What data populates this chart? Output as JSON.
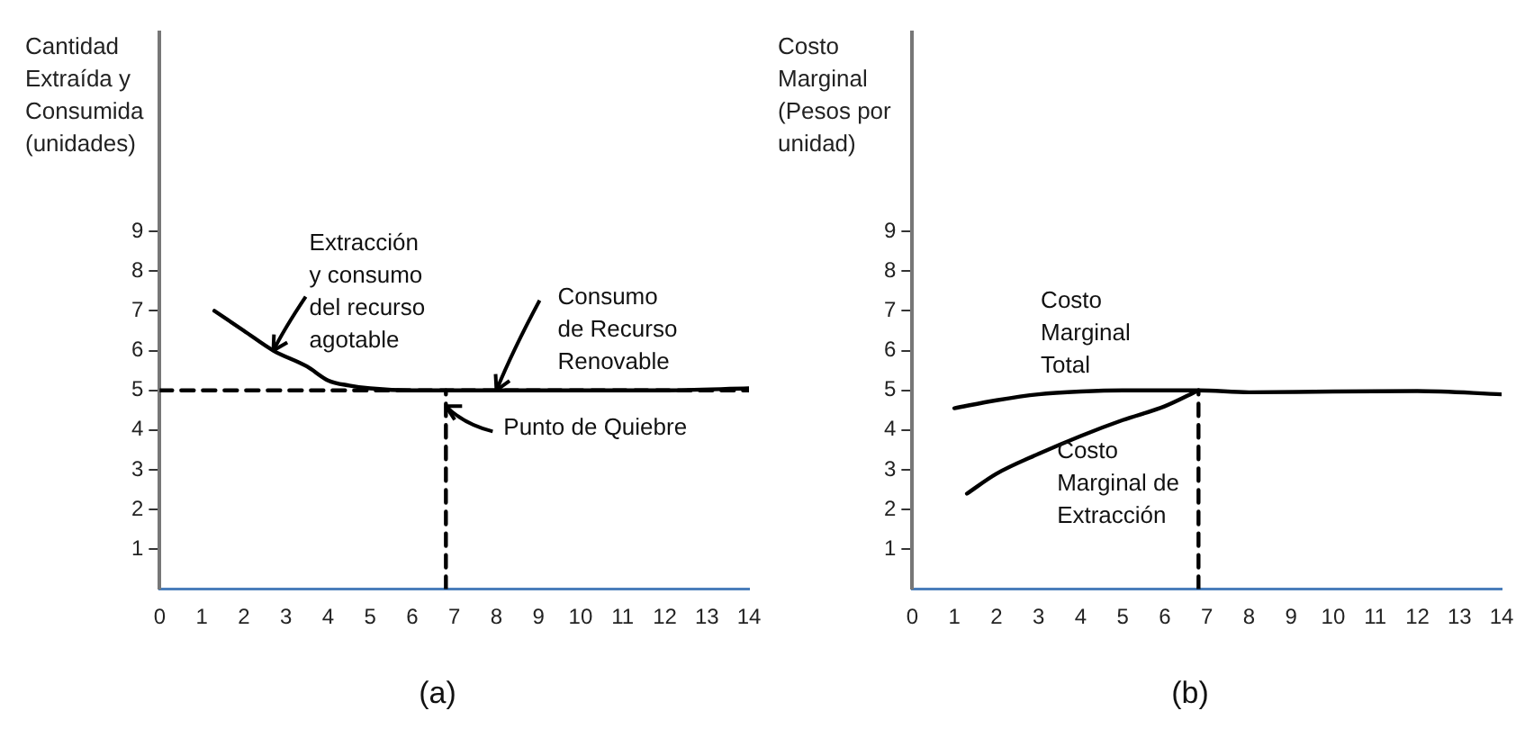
{
  "chart_data": [
    {
      "type": "line",
      "title": "(a)",
      "ylabel": "Cantidad Extraída y Consumida (unidades)",
      "xlim": [
        0,
        14
      ],
      "xticks": [
        0,
        1,
        2,
        3,
        4,
        5,
        6,
        7,
        8,
        9,
        10,
        11,
        12,
        13,
        14
      ],
      "ylim": [
        0,
        14
      ],
      "yticks": [
        1,
        2,
        3,
        4,
        5,
        6,
        7,
        8,
        9
      ],
      "grid": false,
      "legend": false,
      "marker": "none",
      "series": [
        {
          "color": "#000000",
          "x": [
            1.3,
            2,
            2.7,
            3.5,
            4,
            4.5,
            5,
            6,
            7,
            8,
            10,
            12,
            14
          ],
          "values": [
            7,
            6.5,
            6,
            5.6,
            5.25,
            5.12,
            5.05,
            5,
            5,
            5,
            5,
            5,
            5.05
          ]
        },
        {
          "color": "#000000",
          "line_style": "dashed",
          "x": [
            0,
            14
          ],
          "values": [
            5,
            5
          ]
        },
        {
          "color": "#000000",
          "line_style": "dashed",
          "x": [
            6.8,
            6.8
          ],
          "values": [
            0,
            5
          ]
        }
      ],
      "annotations": [
        {
          "text": "Extracción y consumo del recurso agotable",
          "x": 2.7,
          "y": 6
        },
        {
          "text": "Consumo de Recurso Renovable",
          "x": 8,
          "y": 5
        },
        {
          "text": "Punto de Quiebre",
          "x": 6.8,
          "y": 4.6
        }
      ]
    },
    {
      "type": "line",
      "title": "(b)",
      "ylabel": "Costo Marginal (Pesos por unidad)",
      "xlim": [
        0,
        14
      ],
      "xticks": [
        0,
        1,
        2,
        3,
        4,
        5,
        6,
        7,
        8,
        9,
        10,
        11,
        12,
        13,
        14
      ],
      "ylim": [
        0,
        14
      ],
      "yticks": [
        1,
        2,
        3,
        4,
        5,
        6,
        7,
        8,
        9
      ],
      "grid": false,
      "legend": false,
      "marker": "none",
      "series": [
        {
          "name": "Costo Marginal Total",
          "color": "#000000",
          "x": [
            1,
            2,
            3,
            4,
            5,
            6,
            6.8,
            8,
            10,
            12,
            14
          ],
          "values": [
            4.55,
            4.75,
            4.9,
            4.97,
            5,
            5,
            5,
            4.95,
            4.97,
            4.98,
            4.9
          ]
        },
        {
          "name": "Costo Marginal de Extracción",
          "color": "#000000",
          "x": [
            1.3,
            2,
            3,
            4,
            5,
            6,
            6.8
          ],
          "values": [
            2.4,
            2.9,
            3.4,
            3.85,
            4.25,
            4.6,
            5
          ]
        },
        {
          "color": "#000000",
          "line_style": "dashed",
          "x": [
            6.8,
            6.8
          ],
          "values": [
            0,
            5
          ]
        }
      ]
    }
  ]
}
